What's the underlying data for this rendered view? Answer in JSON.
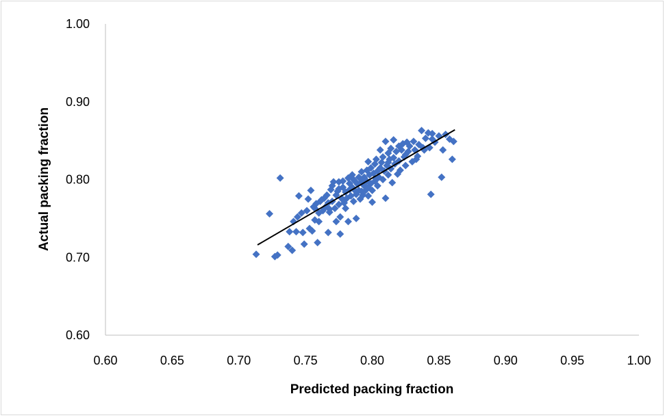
{
  "chart_data": {
    "type": "scatter",
    "title": "",
    "xlabel": "Predicted packing fraction",
    "ylabel": "Actual packing fraction",
    "xlim": [
      0.6,
      1.0
    ],
    "ylim": [
      0.6,
      1.0
    ],
    "x_ticks": [
      "0.60",
      "0.65",
      "0.70",
      "0.75",
      "0.80",
      "0.85",
      "0.90",
      "0.95",
      "1.00"
    ],
    "y_ticks": [
      "0.60",
      "0.70",
      "0.80",
      "0.90",
      "1.00"
    ],
    "grid": false,
    "legend": "none",
    "marker": "diamond",
    "colors": {
      "points": "#4472C4",
      "trendline": "#000000",
      "axis": "#BFBFBF",
      "frame": "#D9D9D9",
      "text": "#000000"
    },
    "trendline": {
      "x": [
        0.714,
        0.862
      ],
      "y": [
        0.716,
        0.864
      ]
    },
    "series": [
      {
        "points": [
          [
            0.713,
            0.704
          ],
          [
            0.723,
            0.756
          ],
          [
            0.727,
            0.701
          ],
          [
            0.729,
            0.703
          ],
          [
            0.731,
            0.802
          ],
          [
            0.737,
            0.714
          ],
          [
            0.738,
            0.733
          ],
          [
            0.74,
            0.709
          ],
          [
            0.741,
            0.746
          ],
          [
            0.743,
            0.733
          ],
          [
            0.744,
            0.752
          ],
          [
            0.745,
            0.779
          ],
          [
            0.747,
            0.757
          ],
          [
            0.748,
            0.732
          ],
          [
            0.749,
            0.717
          ],
          [
            0.751,
            0.76
          ],
          [
            0.752,
            0.775
          ],
          [
            0.753,
            0.737
          ],
          [
            0.754,
            0.786
          ],
          [
            0.755,
            0.734
          ],
          [
            0.756,
            0.765
          ],
          [
            0.757,
            0.748
          ],
          [
            0.758,
            0.769
          ],
          [
            0.759,
            0.719
          ],
          [
            0.76,
            0.757
          ],
          [
            0.76,
            0.746
          ],
          [
            0.761,
            0.772
          ],
          [
            0.762,
            0.774
          ],
          [
            0.763,
            0.76
          ],
          [
            0.764,
            0.776
          ],
          [
            0.765,
            0.765
          ],
          [
            0.766,
            0.78
          ],
          [
            0.767,
            0.732
          ],
          [
            0.767,
            0.77
          ],
          [
            0.768,
            0.758
          ],
          [
            0.769,
            0.787
          ],
          [
            0.77,
            0.792
          ],
          [
            0.77,
            0.772
          ],
          [
            0.771,
            0.797
          ],
          [
            0.772,
            0.763
          ],
          [
            0.773,
            0.746
          ],
          [
            0.773,
            0.78
          ],
          [
            0.774,
            0.785
          ],
          [
            0.775,
            0.797
          ],
          [
            0.775,
            0.768
          ],
          [
            0.776,
            0.73
          ],
          [
            0.776,
            0.752
          ],
          [
            0.777,
            0.776
          ],
          [
            0.778,
            0.79
          ],
          [
            0.778,
            0.798
          ],
          [
            0.779,
            0.77
          ],
          [
            0.78,
            0.784
          ],
          [
            0.78,
            0.763
          ],
          [
            0.781,
            0.776
          ],
          [
            0.782,
            0.802
          ],
          [
            0.782,
            0.746
          ],
          [
            0.783,
            0.787
          ],
          [
            0.783,
            0.795
          ],
          [
            0.784,
            0.779
          ],
          [
            0.785,
            0.806
          ],
          [
            0.785,
            0.79
          ],
          [
            0.786,
            0.772
          ],
          [
            0.787,
            0.786
          ],
          [
            0.787,
            0.798
          ],
          [
            0.788,
            0.75
          ],
          [
            0.788,
            0.781
          ],
          [
            0.789,
            0.794
          ],
          [
            0.79,
            0.803
          ],
          [
            0.79,
            0.786
          ],
          [
            0.791,
            0.775
          ],
          [
            0.792,
            0.797
          ],
          [
            0.792,
            0.81
          ],
          [
            0.793,
            0.78
          ],
          [
            0.794,
            0.792
          ],
          [
            0.794,
            0.803
          ],
          [
            0.795,
            0.786
          ],
          [
            0.796,
            0.812
          ],
          [
            0.796,
            0.798
          ],
          [
            0.797,
            0.823
          ],
          [
            0.797,
            0.79
          ],
          [
            0.798,
            0.806
          ],
          [
            0.799,
            0.815
          ],
          [
            0.799,
            0.795
          ],
          [
            0.8,
            0.786
          ],
          [
            0.8,
            0.771
          ],
          [
            0.801,
            0.808
          ],
          [
            0.802,
            0.82
          ],
          [
            0.802,
            0.798
          ],
          [
            0.803,
            0.826
          ],
          [
            0.804,
            0.811
          ],
          [
            0.804,
            0.792
          ],
          [
            0.805,
            0.803
          ],
          [
            0.806,
            0.838
          ],
          [
            0.806,
            0.815
          ],
          [
            0.807,
            0.822
          ],
          [
            0.808,
            0.8
          ],
          [
            0.808,
            0.829
          ],
          [
            0.809,
            0.811
          ],
          [
            0.81,
            0.849
          ],
          [
            0.81,
            0.776
          ],
          [
            0.811,
            0.818
          ],
          [
            0.812,
            0.834
          ],
          [
            0.812,
            0.806
          ],
          [
            0.813,
            0.826
          ],
          [
            0.814,
            0.84
          ],
          [
            0.814,
            0.814
          ],
          [
            0.815,
            0.796
          ],
          [
            0.816,
            0.828
          ],
          [
            0.816,
            0.851
          ],
          [
            0.817,
            0.82
          ],
          [
            0.818,
            0.836
          ],
          [
            0.819,
            0.807
          ],
          [
            0.82,
            0.843
          ],
          [
            0.82,
            0.824
          ],
          [
            0.821,
            0.812
          ],
          [
            0.822,
            0.838
          ],
          [
            0.823,
            0.846
          ],
          [
            0.824,
            0.829
          ],
          [
            0.825,
            0.818
          ],
          [
            0.826,
            0.848
          ],
          [
            0.827,
            0.836
          ],
          [
            0.828,
            0.843
          ],
          [
            0.83,
            0.823
          ],
          [
            0.831,
            0.849
          ],
          [
            0.832,
            0.838
          ],
          [
            0.833,
            0.826
          ],
          [
            0.835,
            0.845
          ],
          [
            0.837,
            0.863
          ],
          [
            0.838,
            0.841
          ],
          [
            0.84,
            0.853
          ],
          [
            0.842,
            0.86
          ],
          [
            0.843,
            0.841
          ],
          [
            0.844,
            0.781
          ],
          [
            0.845,
            0.859
          ],
          [
            0.847,
            0.848
          ],
          [
            0.85,
            0.856
          ],
          [
            0.852,
            0.803
          ],
          [
            0.853,
            0.838
          ],
          [
            0.855,
            0.858
          ],
          [
            0.858,
            0.852
          ],
          [
            0.86,
            0.826
          ],
          [
            0.861,
            0.849
          ],
          [
            0.845,
            0.852
          ],
          [
            0.839,
            0.838
          ],
          [
            0.792,
            0.785
          ],
          [
            0.778,
            0.774
          ],
          [
            0.768,
            0.762
          ],
          [
            0.757,
            0.763
          ],
          [
            0.803,
            0.801
          ],
          [
            0.812,
            0.822
          ],
          [
            0.825,
            0.832
          ],
          [
            0.834,
            0.83
          ],
          [
            0.786,
            0.8
          ],
          [
            0.775,
            0.788
          ],
          [
            0.797,
            0.779
          ]
        ]
      }
    ]
  }
}
